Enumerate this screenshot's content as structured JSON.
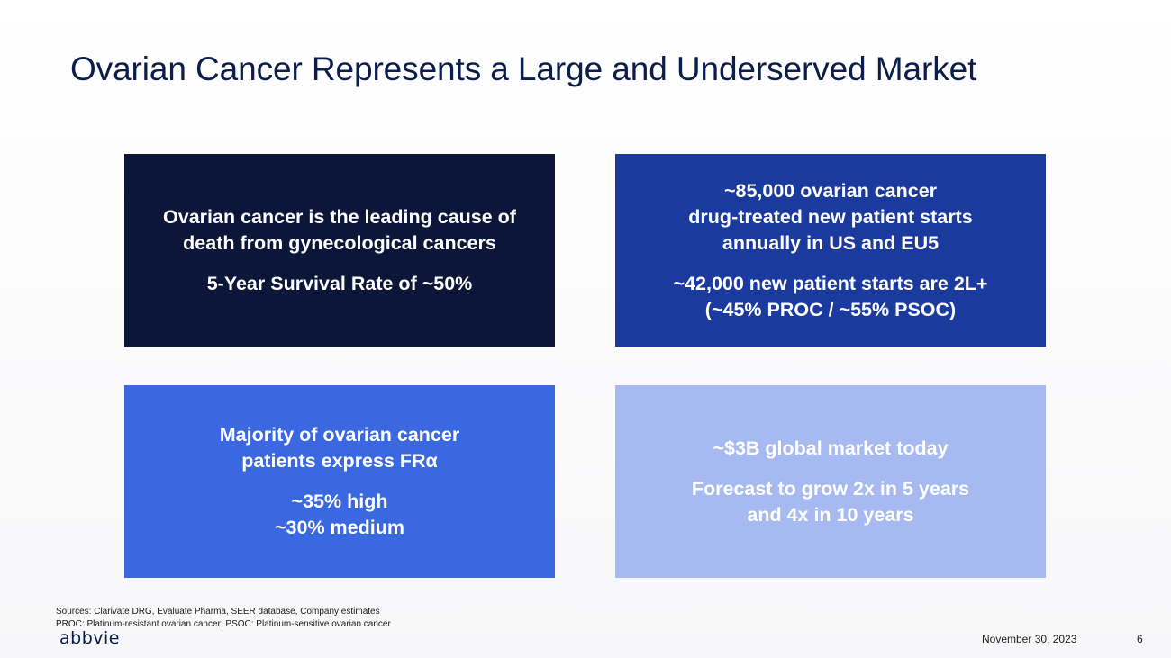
{
  "slide": {
    "title": "Ovarian Cancer Represents a Large and Underserved Market"
  },
  "boxes": {
    "top_left": {
      "line1": "Ovarian cancer is the leading cause of\ndeath from gynecological cancers",
      "line2": "5-Year Survival Rate of ~50%",
      "color": "#0c1638"
    },
    "top_right": {
      "line1": "~85,000 ovarian cancer\ndrug-treated new patient starts\nannually in US and EU5",
      "line2": "~42,000 new patient starts are 2L+\n(~45% PROC / ~55% PSOC)",
      "color": "#1b3a9e"
    },
    "bottom_left": {
      "line1": "Majority of ovarian cancer\npatients express FRα",
      "line2": "~35% high\n~30% medium",
      "color": "#3a68e0"
    },
    "bottom_right": {
      "line1": "~$3B global market today",
      "line2": "Forecast to grow 2x in 5 years\nand 4x in 10 years",
      "color": "#a6baf1"
    }
  },
  "footer": {
    "sources": "Sources: Clarivate DRG, Evaluate Pharma, SEER database, Company estimates",
    "abbreviations": "PROC: Platinum-resistant ovarian cancer; PSOC: Platinum-sensitive ovarian cancer",
    "logo_text": "abbvie",
    "date": "November 30, 2023",
    "page_number": "6"
  }
}
